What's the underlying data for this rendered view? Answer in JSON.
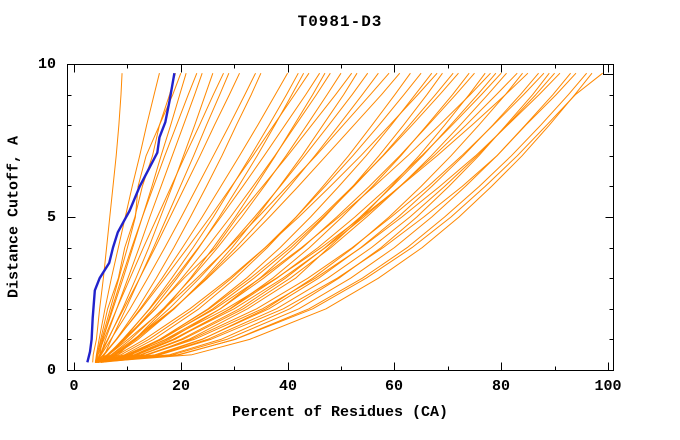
{
  "chart_data": {
    "type": "line",
    "title": "T0981-D3",
    "xlabel": "Percent of Residues (CA)",
    "ylabel": "Distance Cutoff, A",
    "xlim": [
      -1.3,
      100.9
    ],
    "ylim": [
      0,
      10
    ],
    "grid": false,
    "legend": "none",
    "x_major_ticks": [
      0,
      20,
      40,
      60,
      80,
      100
    ],
    "x_minor_ticks": [
      10,
      30,
      50,
      70,
      90
    ],
    "y_major_ticks": [
      0,
      5,
      10
    ],
    "y_minor_ticks": [
      1,
      2,
      3,
      4,
      6,
      7,
      8,
      9
    ],
    "colors": {
      "models": "#ff8800",
      "highlight": "#2222cc",
      "axis": "#000000",
      "background": "#ffffff"
    },
    "models": {
      "color": "#ff8800",
      "y_samples": [
        0.25,
        0.5,
        1,
        2,
        3,
        4,
        5,
        6,
        7,
        8,
        9,
        9.7
      ],
      "x_series": [
        [
          4,
          4.3,
          5,
          6.3,
          8.3,
          9.5,
          11.4,
          12.8,
          14.7,
          16,
          17.9,
          19
        ],
        [
          4,
          4.5,
          5.4,
          7.3,
          9.2,
          11,
          12.8,
          14.6,
          16.3,
          18.1,
          19.8,
          21
        ],
        [
          4.5,
          5,
          5.9,
          8,
          10.1,
          12.2,
          14.2,
          16.3,
          18.4,
          20.5,
          22.6,
          24
        ],
        [
          4,
          5,
          6.4,
          9.1,
          11.6,
          14,
          16.2,
          18.4,
          20.5,
          22.6,
          24.6,
          26
        ],
        [
          4,
          4.5,
          5.6,
          8,
          10.5,
          13,
          15.6,
          18.2,
          20.8,
          23.5,
          26.1,
          28
        ],
        [
          4,
          4.8,
          6.3,
          9.3,
          12.3,
          15.2,
          18,
          20.8,
          23.6,
          26.3,
          29.1,
          31
        ],
        [
          4,
          5.1,
          6.9,
          10.5,
          13.8,
          17,
          20.1,
          23.1,
          26.1,
          29.1,
          32,
          34
        ],
        [
          4,
          4.2,
          4.7,
          5.8,
          7,
          8.3,
          9.6,
          10.9,
          12.3,
          13.6,
          15,
          16
        ],
        [
          3.5,
          3.6,
          4.2,
          4.8,
          5.5,
          6.1,
          6.7,
          7.3,
          7.9,
          8.4,
          8.8,
          9
        ],
        [
          4.5,
          4.8,
          5.4,
          7.1,
          8.9,
          10.8,
          12.8,
          14.9,
          17,
          19.2,
          21.4,
          23
        ],
        [
          4,
          5.7,
          7.9,
          11.9,
          15.4,
          18.7,
          21.8,
          24.8,
          27.7,
          30.4,
          33.2,
          35
        ],
        [
          5,
          5.7,
          7,
          9.7,
          12.3,
          14.9,
          17.4,
          19.9,
          22.4,
          24.8,
          27.3,
          29
        ],
        [
          4,
          4.3,
          5.2,
          6.8,
          8.4,
          10,
          11.5,
          12,
          13.5,
          16,
          18.5,
          20
        ],
        [
          4,
          5.6,
          8,
          12.4,
          16.5,
          20.3,
          24,
          27.5,
          31,
          34.4,
          37.7,
          40
        ],
        [
          4,
          6.5,
          9.6,
          14.8,
          19.3,
          23.4,
          27.2,
          30.8,
          34.3,
          37.6,
          40.8,
          43
        ],
        [
          4.5,
          6.4,
          9.1,
          14.2,
          18.9,
          23.3,
          27.5,
          31.6,
          35.6,
          39.5,
          43.4,
          46
        ],
        [
          4,
          6.4,
          9.6,
          15.3,
          20.2,
          24.9,
          29.3,
          33.5,
          37.6,
          41.5,
          45.4,
          48
        ],
        [
          4,
          7,
          10.6,
          16.7,
          22,
          26.9,
          31.4,
          35.6,
          39.7,
          43.6,
          47.4,
          50
        ],
        [
          4,
          6.2,
          9.3,
          15.2,
          20.6,
          26.5,
          30.6,
          35.3,
          40,
          44.5,
          49,
          52
        ],
        [
          5,
          7.7,
          11.4,
          17.8,
          23.5,
          28.8,
          33.8,
          38.6,
          43.2,
          47.7,
          52.1,
          55
        ],
        [
          4,
          7.4,
          11.6,
          18.7,
          24.8,
          30.3,
          35.5,
          40.4,
          45.1,
          49.6,
          54,
          57
        ],
        [
          4,
          6.5,
          10.1,
          16.9,
          23,
          28.9,
          34.5,
          39.9,
          45.3,
          50.4,
          55.5,
          59
        ],
        [
          4,
          7.1,
          11.2,
          18.6,
          25,
          31,
          36.6,
          42,
          47.2,
          52.4,
          57.6,
          61
        ],
        [
          4,
          5.5,
          7.9,
          12.6,
          17,
          21.3,
          25.5,
          29.5,
          33.5,
          37.4,
          41.3,
          44
        ],
        [
          4,
          7.8,
          12,
          18.8,
          24.5,
          29.6,
          34.2,
          38.5,
          42.7,
          46.6,
          50.5,
          53
        ],
        [
          5.5,
          8.2,
          11.4,
          17,
          21.8,
          26.1,
          30.2,
          34,
          37.7,
          41.2,
          44.7,
          47
        ],
        [
          4.5,
          6.5,
          9.3,
          14.1,
          18.3,
          22.3,
          26.1,
          29.6,
          33.1,
          36.5,
          39.8,
          42
        ],
        [
          4,
          9.5,
          14.9,
          23.4,
          30.2,
          36.2,
          41.6,
          46.6,
          51.4,
          55.8,
          60.1,
          63
        ],
        [
          4,
          8.8,
          14,
          22.5,
          29.5,
          35.8,
          41.6,
          47,
          52.2,
          57.1,
          61.8,
          65
        ],
        [
          4.5,
          10.4,
          16.1,
          25.1,
          32.3,
          38.6,
          44.3,
          49.6,
          54.7,
          59.4,
          63.9,
          67
        ],
        [
          4,
          11.3,
          17.8,
          27.4,
          34.8,
          41.2,
          46.9,
          52.2,
          57.1,
          61.7,
          66.1,
          69
        ],
        [
          4,
          10.3,
          16.4,
          26,
          33.7,
          40.6,
          46.7,
          52.4,
          57.8,
          62.8,
          67.7,
          71
        ],
        [
          5,
          10.2,
          16,
          25.3,
          33,
          40,
          46.3,
          52.2,
          57.9,
          63.3,
          68.5,
          72
        ],
        [
          4,
          11.9,
          18.9,
          29.2,
          37.2,
          44.1,
          50.2,
          55.9,
          61.2,
          66.1,
          70.9,
          74
        ],
        [
          4,
          10.7,
          17.1,
          27.4,
          35.5,
          42.8,
          49.2,
          55.3,
          61,
          66.3,
          71.5,
          75
        ],
        [
          4,
          13.9,
          21.5,
          32.5,
          41.5,
          47.7,
          53.9,
          59.4,
          64.6,
          69.4,
          74,
          77
        ],
        [
          4,
          9.8,
          16.1,
          26.4,
          34.9,
          42.6,
          49.6,
          56.2,
          62.5,
          68.4,
          74.2,
          78
        ],
        [
          4.5,
          11.6,
          18.5,
          29.3,
          38,
          45.7,
          52.6,
          59,
          65.1,
          70.8,
          76.3,
          80
        ],
        [
          4,
          12.7,
          20.4,
          31.7,
          40.5,
          48.1,
          54.8,
          61.1,
          66.9,
          72.3,
          77.5,
          81
        ],
        [
          4,
          11.4,
          18.6,
          30,
          39.1,
          47.1,
          54.3,
          61,
          67.4,
          73.4,
          79.1,
          83
        ],
        [
          5,
          15.7,
          24,
          35.9,
          44.7,
          52.3,
          59,
          65,
          70.6,
          75.8,
          80.8,
          84
        ],
        [
          4,
          10.3,
          17.3,
          28.5,
          37.9,
          46.3,
          53.9,
          61.1,
          68,
          74.5,
          80.8,
          85
        ],
        [
          4,
          8.2,
          13.2,
          21.7,
          29.1,
          35.8,
          42.1,
          48,
          53.7,
          59.1,
          64.4,
          68
        ],
        [
          4,
          12.5,
          20,
          31,
          39.6,
          47,
          53.6,
          59.6,
          65.3,
          70.5,
          75.6,
          79
        ],
        [
          4,
          15.2,
          23.9,
          36.5,
          45.8,
          53.7,
          60.7,
          67,
          72.9,
          78.4,
          83.6,
          87
        ],
        [
          4,
          13.5,
          21.9,
          34.2,
          43.8,
          52.1,
          59.4,
          66.3,
          72.6,
          78.5,
          84.2,
          88
        ],
        [
          4,
          17.9,
          27.5,
          40.4,
          49.6,
          57.5,
          64.2,
          70.2,
          75.8,
          80.9,
          85.9,
          89
        ],
        [
          4.5,
          16,
          25,
          37.9,
          47.5,
          55.7,
          62.9,
          69.4,
          75.5,
          81.1,
          86.5,
          90
        ],
        [
          4,
          13.8,
          22.5,
          35.3,
          45.2,
          53.8,
          61.4,
          68.5,
          75.2,
          81.2,
          87.1,
          91
        ],
        [
          4,
          18.5,
          28.6,
          42.1,
          51.8,
          60,
          67,
          73.3,
          79.2,
          84.5,
          89.7,
          93
        ],
        [
          4,
          16.2,
          25.6,
          39.2,
          49.3,
          57.9,
          65.5,
          72.7,
          79.2,
          84.6,
          90.3,
          94
        ],
        [
          5,
          19.8,
          30.1,
          44,
          54,
          62.4,
          69.4,
          75.9,
          81.9,
          87.4,
          92.6,
          96
        ],
        [
          4,
          22.1,
          32.9,
          47.2,
          57,
          65.2,
          72.1,
          78.2,
          83.9,
          89,
          93.8,
          97
        ],
        [
          4,
          19.5,
          30.2,
          44.7,
          54.7,
          63.3,
          70.6,
          77,
          83,
          88.5,
          93.9,
          99
        ]
      ]
    },
    "highlight": {
      "color": "#2222cc",
      "points": [
        [
          2.5,
          0.25
        ],
        [
          3,
          0.6
        ],
        [
          3.3,
          1
        ],
        [
          3.5,
          1.7
        ],
        [
          3.9,
          2.6
        ],
        [
          4.8,
          3
        ],
        [
          6.6,
          3.5
        ],
        [
          7.3,
          4
        ],
        [
          8.2,
          4.5
        ],
        [
          10.4,
          5.2
        ],
        [
          12.3,
          6
        ],
        [
          14.1,
          6.6
        ],
        [
          15.6,
          7.1
        ],
        [
          16,
          7.6
        ],
        [
          17.1,
          8.1
        ],
        [
          17.9,
          8.8
        ],
        [
          18.4,
          9.3
        ],
        [
          18.8,
          9.7
        ]
      ]
    }
  }
}
